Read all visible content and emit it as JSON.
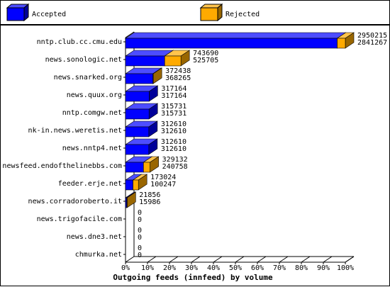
{
  "chart_data": {
    "type": "bar3d-stacked-horizontal",
    "title": "Outgoing feeds (innfeed) by volume",
    "categories": [
      "nntp.club.cc.cmu.edu",
      "news.sonologic.net",
      "news.snarked.org",
      "news.quux.org",
      "nntp.comgw.net",
      "nk-in.news.weretis.net",
      "news.nntp4.net",
      "newsfeed.endofthelinebbs.com",
      "feeder.erje.net",
      "news.corradoroberto.it",
      "news.trigofacile.com",
      "news.dne3.net",
      "chmurka.net"
    ],
    "series": [
      {
        "name": "Accepted",
        "color": "#0000ff",
        "values": [
          2841267,
          525705,
          368265,
          317164,
          315731,
          312610,
          312610,
          240758,
          100247,
          15986,
          0,
          0,
          0
        ]
      },
      {
        "name": "Rejected",
        "color": "#ffaa00",
        "values": [
          108948,
          217985,
          4173,
          0,
          0,
          0,
          0,
          88374,
          72777,
          5870,
          0,
          0,
          0
        ]
      }
    ],
    "totals": [
      2950215,
      743690,
      372438,
      317164,
      315731,
      312610,
      312610,
      329132,
      173024,
      21856,
      0,
      0,
      0
    ],
    "xlim": [
      0,
      2950215
    ],
    "xticks": [
      {
        "value": 0,
        "label": "0%"
      },
      {
        "value": 295021.5,
        "label": "10%"
      },
      {
        "value": 590043,
        "label": "20%"
      },
      {
        "value": 885064.5,
        "label": "30%"
      },
      {
        "value": 1180086,
        "label": "40%"
      },
      {
        "value": 1475107.5,
        "label": "50%"
      },
      {
        "value": 1770129,
        "label": "60%"
      },
      {
        "value": 2065150.5,
        "label": "70%"
      },
      {
        "value": 2360172,
        "label": "80%"
      },
      {
        "value": 2655193.5,
        "label": "90%"
      },
      {
        "value": 2950215,
        "label": "100%"
      }
    ]
  }
}
